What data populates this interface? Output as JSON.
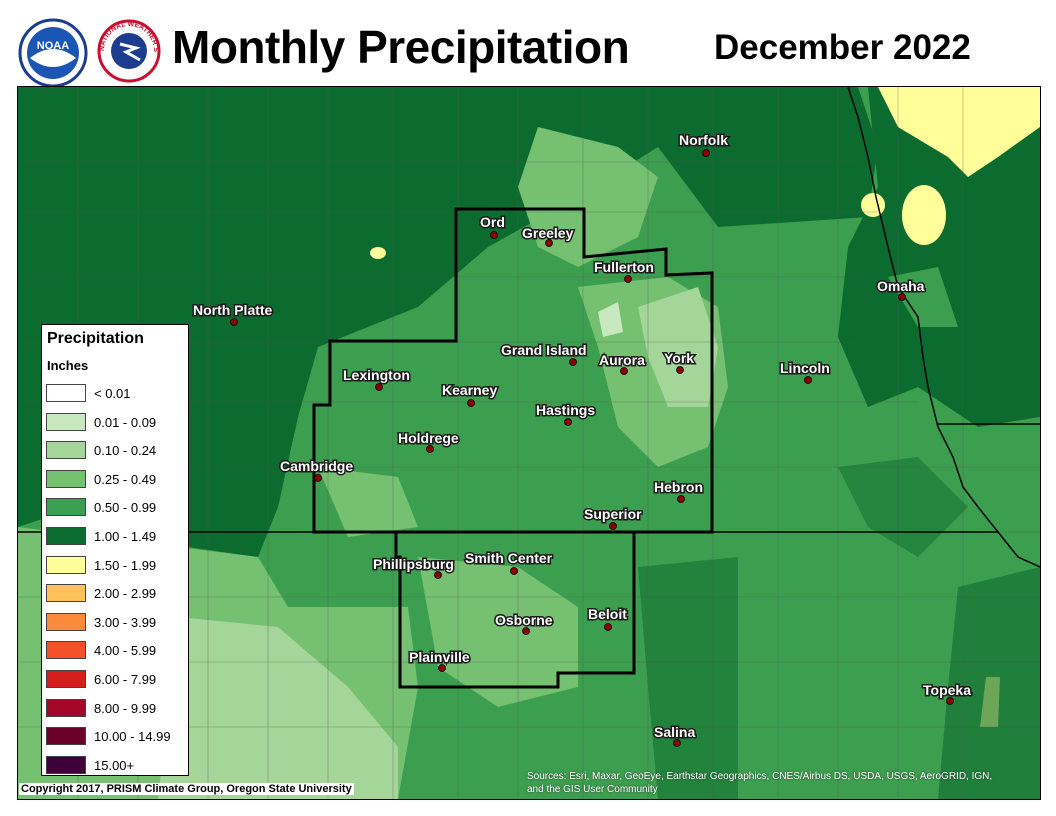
{
  "header": {
    "title": "Monthly Precipitation",
    "subtitle": "December 2022",
    "noaa_logo_text": "NOAA",
    "nws_logo_text": "NATIONAL WEATHER SERVICE"
  },
  "legend": {
    "title": "Precipitation",
    "units": "Inches",
    "classes": [
      {
        "label": "< 0.01",
        "color": "#ffffff"
      },
      {
        "label": "0.01 - 0.09",
        "color": "#c8e8c0"
      },
      {
        "label": "0.10 - 0.24",
        "color": "#a4d699"
      },
      {
        "label": "0.25 - 0.49",
        "color": "#76c072"
      },
      {
        "label": "0.50 - 0.99",
        "color": "#3c9f4f"
      },
      {
        "label": "1.00 - 1.49",
        "color": "#0c6b2e"
      },
      {
        "label": "1.50 - 1.99",
        "color": "#fffe99"
      },
      {
        "label": "2.00 - 2.99",
        "color": "#fdc35a"
      },
      {
        "label": "3.00 - 3.99",
        "color": "#fb8a3a"
      },
      {
        "label": "4.00 - 5.99",
        "color": "#f4502a"
      },
      {
        "label": "6.00 - 7.99",
        "color": "#d41d1d"
      },
      {
        "label": "8.00 - 9.99",
        "color": "#a3082b"
      },
      {
        "label": "10.00 - 14.99",
        "color": "#6a0027"
      },
      {
        "label": "15.00+",
        "color": "#3d0039"
      }
    ]
  },
  "cities": [
    {
      "name": "Norfolk"
    },
    {
      "name": "Ord"
    },
    {
      "name": "Greeley"
    },
    {
      "name": "Fullerton"
    },
    {
      "name": "Omaha"
    },
    {
      "name": "North Platte"
    },
    {
      "name": "Grand Island"
    },
    {
      "name": "Aurora"
    },
    {
      "name": "York"
    },
    {
      "name": "Lexington"
    },
    {
      "name": "Kearney"
    },
    {
      "name": "Lincoln"
    },
    {
      "name": "Hastings"
    },
    {
      "name": "Holdrege"
    },
    {
      "name": "Cambridge"
    },
    {
      "name": "Hebron"
    },
    {
      "name": "Superior"
    },
    {
      "name": "Phillipsburg"
    },
    {
      "name": "Smith Center"
    },
    {
      "name": "Beloit"
    },
    {
      "name": "Osborne"
    },
    {
      "name": "Plainville"
    },
    {
      "name": "Topeka"
    },
    {
      "name": "Salina"
    }
  ],
  "footer": {
    "copyright": "Copyright 2017, PRISM Climate Group, Oregon State University",
    "credits_line1": "Sources: Esri, Maxar, GeoEye, Earthstar Geographics, CNES/Airbus DS, USDA, USGS, AeroGRID, IGN,",
    "credits_line2": "and the GIS User Community"
  }
}
